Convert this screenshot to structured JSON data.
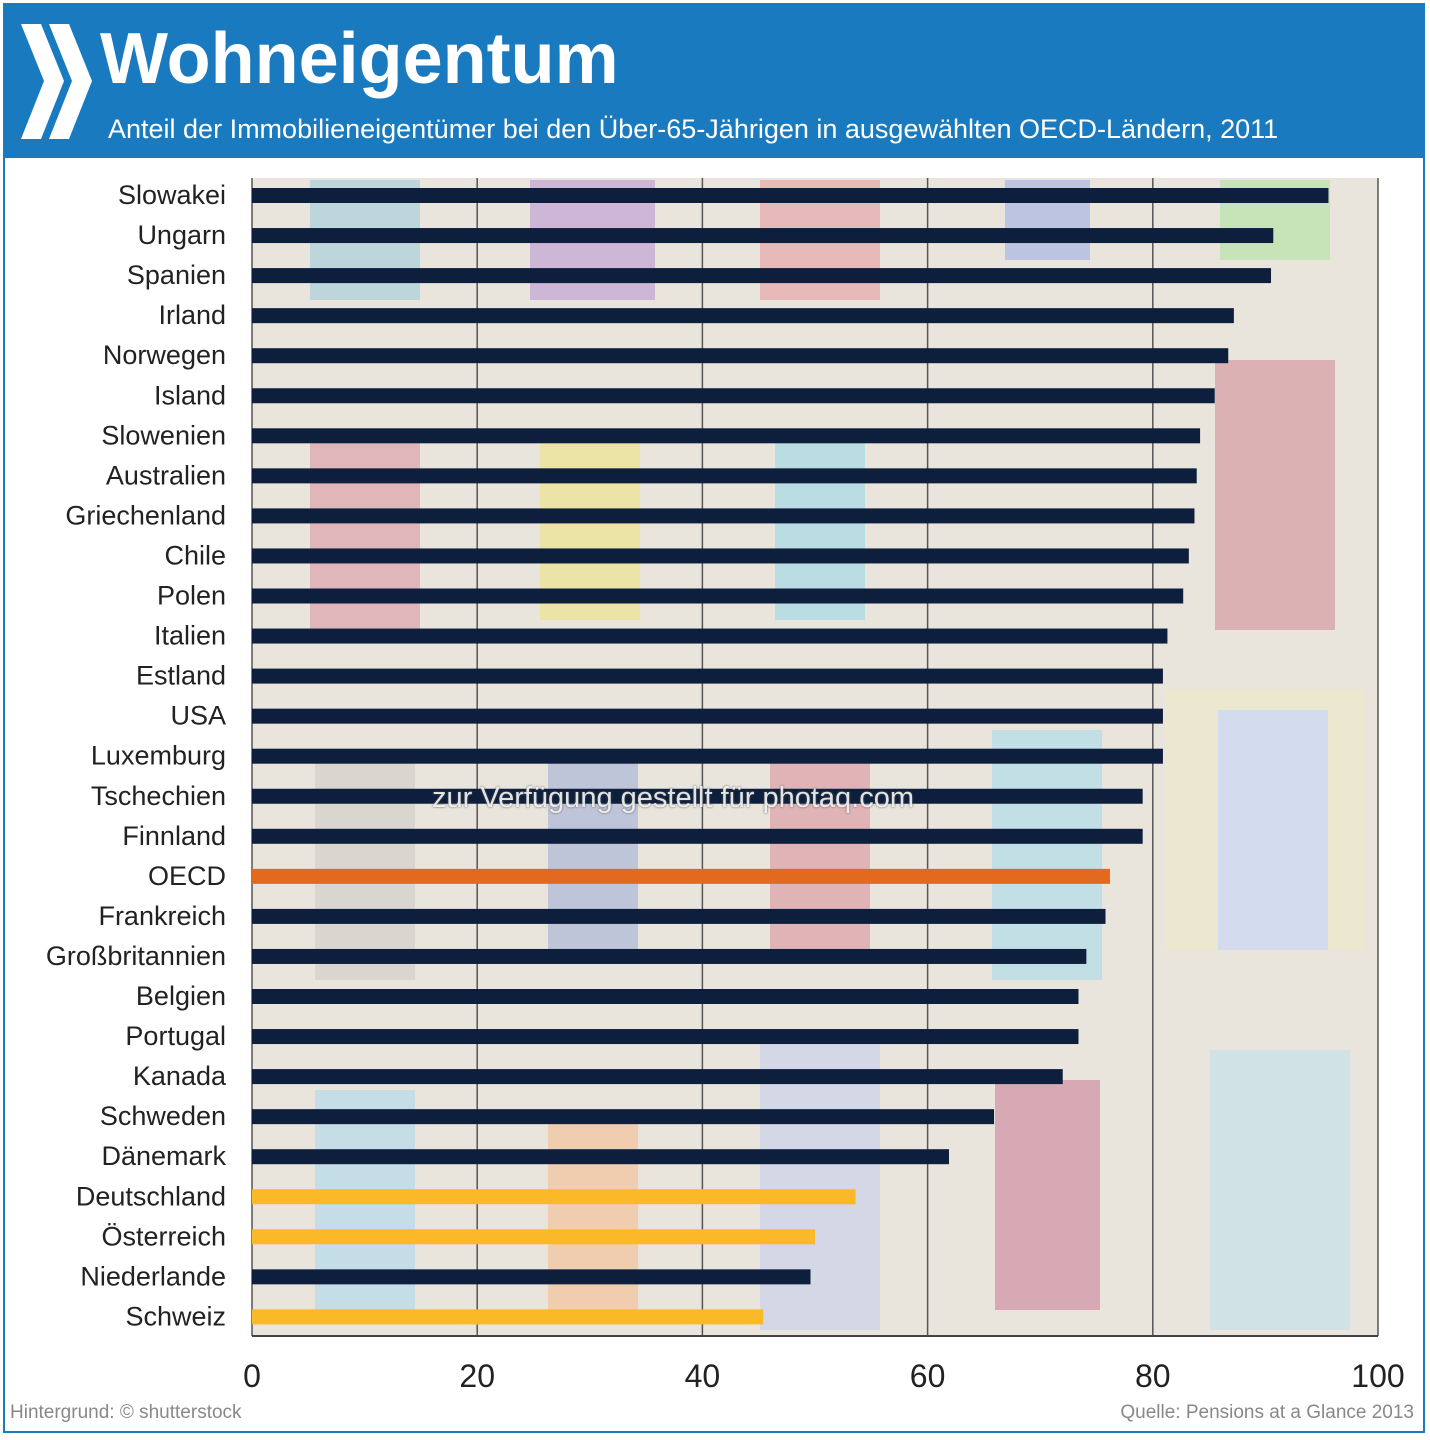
{
  "header": {
    "title": "Wohneigentum",
    "subtitle": "Anteil der Immobilieneigentümer bei den Über-65-Jährigen in ausgewählten OECD-Ländern, 2011"
  },
  "footer": {
    "credit": "Hintergrund: © shutterstock",
    "source": "Quelle: Pensions at a Glance 2013"
  },
  "watermark": "zur Verfügung gestellt für photaq.com",
  "colors": {
    "header": "#1a7abf",
    "default": "#0d1f3c",
    "oecd": "#e2691e",
    "highlight": "#fbb829"
  },
  "chart_data": {
    "type": "bar",
    "orientation": "horizontal",
    "title": "Wohneigentum",
    "xlabel": "",
    "ylabel": "",
    "xlim": [
      0,
      100
    ],
    "xticks": [
      0,
      20,
      40,
      60,
      80,
      100
    ],
    "grid": true,
    "categories": [
      "Slowakei",
      "Ungarn",
      "Spanien",
      "Irland",
      "Norwegen",
      "Island",
      "Slowenien",
      "Australien",
      "Griechenland",
      "Chile",
      "Polen",
      "Italien",
      "Estland",
      "USA",
      "Luxemburg",
      "Tschechien",
      "Finnland",
      "OECD",
      "Frankreich",
      "Großbritannien",
      "Belgien",
      "Portugal",
      "Kanada",
      "Schweden",
      "Dänemark",
      "Deutschland",
      "Österreich",
      "Niederlande",
      "Schweiz"
    ],
    "values": [
      95.6,
      90.7,
      90.5,
      87.2,
      86.7,
      85.5,
      84.2,
      83.9,
      83.7,
      83.2,
      82.7,
      81.3,
      80.9,
      80.9,
      80.9,
      79.1,
      79.1,
      76.2,
      75.8,
      74.1,
      73.4,
      73.4,
      72.0,
      65.9,
      61.9,
      53.6,
      50.0,
      49.6,
      45.4
    ],
    "highlight": {
      "OECD": "oecd",
      "Deutschland": "highlight",
      "Österreich": "highlight",
      "Schweiz": "highlight"
    }
  }
}
